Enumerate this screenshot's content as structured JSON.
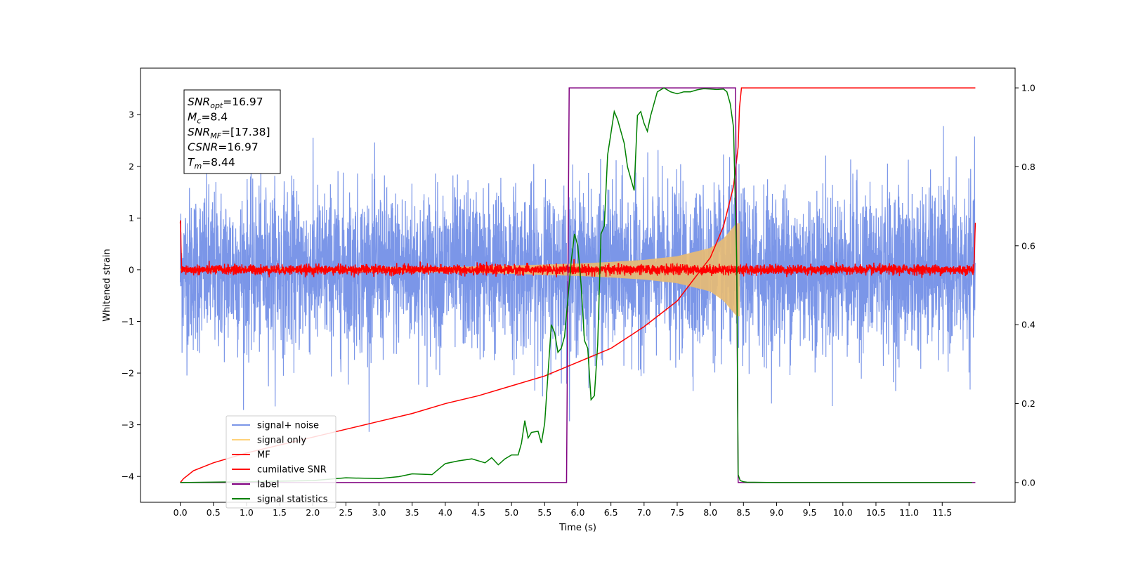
{
  "chart_data": {
    "type": "line",
    "xlabel": "Time (s)",
    "ylabel": "Whitened strain",
    "xlim": [
      -0.6,
      12.6
    ],
    "ylim": [
      -4.5,
      3.9
    ],
    "y2lim": [
      -0.05,
      1.05
    ],
    "x_ticks": [
      0.0,
      0.5,
      1.0,
      1.5,
      2.0,
      2.5,
      3.0,
      3.5,
      4.0,
      4.5,
      5.0,
      5.5,
      6.0,
      6.5,
      7.0,
      7.5,
      8.0,
      8.5,
      9.0,
      9.5,
      10.0,
      10.5,
      11.0,
      11.5
    ],
    "x_tick_labels": [
      "0.0",
      "0.5",
      "1.0",
      "1.5",
      "2.0",
      "2.5",
      "3.0",
      "3.5",
      "4.0",
      "4.5",
      "5.0",
      "5.5",
      "6.0",
      "6.5",
      "7.0",
      "7.5",
      "8.0",
      "8.5",
      "9.0",
      "9.5",
      "10.0",
      "10.5",
      "11.0",
      "11.5"
    ],
    "y_ticks": [
      -4,
      -3,
      -2,
      -1,
      0,
      1,
      2,
      3
    ],
    "y_tick_labels": [
      "−4",
      "−3",
      "−2",
      "−1",
      "0",
      "1",
      "2",
      "3"
    ],
    "y2_ticks": [
      0.0,
      0.2,
      0.4,
      0.6,
      0.8,
      1.0
    ],
    "y2_tick_labels": [
      "0.0",
      "0.2",
      "0.4",
      "0.6",
      "0.8",
      "1.0"
    ],
    "grid": false,
    "legend_position": "bottom-left",
    "annotation": {
      "lines": [
        {
          "sym": "SNR",
          "sub": "opt",
          "value": "=16.97"
        },
        {
          "sym": "M",
          "sub": "c",
          "value": "=8.4"
        },
        {
          "sym": "SNR",
          "sub": "MF",
          "value": "=[17.38]"
        },
        {
          "sym": "CSNR",
          "sub": "",
          "value": "=16.97"
        },
        {
          "sym": "T",
          "sub": "m",
          "value": "=8.44"
        }
      ]
    },
    "series": [
      {
        "name": "signal+ noise",
        "color": "#7b96e8",
        "axis": "left",
        "style": "noise",
        "x_range": [
          0.0,
          12.0
        ],
        "amplitude_approx": 1.3
      },
      {
        "name": "signal only",
        "color": "#ffd27a",
        "axis": "left",
        "style": "chirp",
        "x_range": [
          0.0,
          8.44
        ],
        "envelope_x": [
          0.0,
          4.0,
          5.0,
          6.0,
          6.5,
          7.0,
          7.5,
          8.0,
          8.2,
          8.4
        ],
        "envelope_y": [
          0.02,
          0.05,
          0.08,
          0.12,
          0.15,
          0.19,
          0.26,
          0.42,
          0.6,
          0.9
        ]
      },
      {
        "name": "MF",
        "color": "#ff0000",
        "axis": "left",
        "style": "noise",
        "x_range": [
          0.0,
          12.0
        ],
        "amplitude_approx": 0.08
      },
      {
        "name": "cumilative SNR",
        "color": "#ff0000",
        "axis": "right",
        "x": [
          0.0,
          0.05,
          0.2,
          0.5,
          1.0,
          1.5,
          2.0,
          2.5,
          3.0,
          3.5,
          4.0,
          4.5,
          5.0,
          5.5,
          6.0,
          6.5,
          7.0,
          7.5,
          8.0,
          8.2,
          8.35,
          8.42,
          8.44,
          8.47,
          12.0
        ],
        "y": [
          0.0,
          0.01,
          0.03,
          0.05,
          0.075,
          0.095,
          0.115,
          0.135,
          0.155,
          0.175,
          0.2,
          0.22,
          0.245,
          0.27,
          0.305,
          0.34,
          0.395,
          0.46,
          0.57,
          0.65,
          0.75,
          0.85,
          0.95,
          1.0,
          1.0
        ]
      },
      {
        "name": "label",
        "color": "#800080",
        "axis": "right",
        "x": [
          0.0,
          5.83,
          5.87,
          8.38,
          8.42,
          12.0
        ],
        "y": [
          0.0,
          0.0,
          1.0,
          1.0,
          0.0,
          0.0
        ]
      },
      {
        "name": "signal statistics",
        "color": "#008000",
        "axis": "right",
        "x": [
          0.0,
          1.0,
          2.0,
          2.5,
          3.0,
          3.3,
          3.5,
          3.8,
          4.0,
          4.2,
          4.4,
          4.6,
          4.7,
          4.8,
          4.9,
          5.0,
          5.1,
          5.15,
          5.2,
          5.25,
          5.3,
          5.4,
          5.45,
          5.5,
          5.6,
          5.65,
          5.7,
          5.75,
          5.8,
          5.9,
          5.95,
          6.0,
          6.05,
          6.1,
          6.15,
          6.2,
          6.25,
          6.3,
          6.35,
          6.4,
          6.45,
          6.55,
          6.6,
          6.65,
          6.7,
          6.75,
          6.85,
          6.9,
          6.95,
          7.0,
          7.05,
          7.1,
          7.15,
          7.2,
          7.3,
          7.4,
          7.5,
          7.6,
          7.7,
          7.8,
          7.9,
          8.0,
          8.1,
          8.2,
          8.25,
          8.3,
          8.35,
          8.4,
          8.42,
          8.45,
          8.5,
          8.55,
          9.0,
          10.0,
          11.0,
          11.95
        ],
        "y": [
          0.0,
          0.002,
          0.005,
          0.012,
          0.01,
          0.015,
          0.022,
          0.02,
          0.048,
          0.055,
          0.06,
          0.05,
          0.063,
          0.045,
          0.06,
          0.07,
          0.07,
          0.1,
          0.157,
          0.113,
          0.127,
          0.13,
          0.1,
          0.15,
          0.4,
          0.38,
          0.33,
          0.34,
          0.37,
          0.56,
          0.63,
          0.6,
          0.5,
          0.36,
          0.34,
          0.21,
          0.22,
          0.35,
          0.63,
          0.65,
          0.83,
          0.94,
          0.92,
          0.89,
          0.86,
          0.8,
          0.74,
          0.93,
          0.94,
          0.91,
          0.89,
          0.93,
          0.96,
          0.99,
          1.0,
          0.99,
          0.985,
          0.99,
          0.99,
          0.995,
          0.998,
          0.997,
          0.996,
          0.997,
          0.99,
          0.96,
          0.9,
          0.55,
          0.02,
          0.005,
          0.002,
          0.001,
          0.0,
          0.0,
          0.0,
          0.0
        ]
      }
    ]
  }
}
